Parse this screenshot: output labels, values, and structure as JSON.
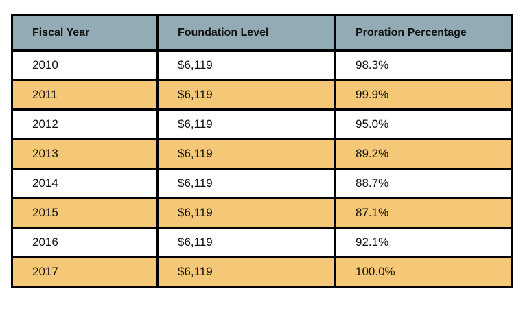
{
  "colors": {
    "header_bg": "#92abb5",
    "stripe_bg": "#f5c877",
    "row_bg": "#ffffff",
    "border": "#000000",
    "text": "#111111"
  },
  "table": {
    "columns": [
      {
        "label": "Fiscal Year"
      },
      {
        "label": "Foundation Level"
      },
      {
        "label": "Proration Percentage"
      }
    ],
    "rows": [
      {
        "fiscal_year": "2010",
        "foundation_level": "$6,119",
        "proration_percentage": "98.3%"
      },
      {
        "fiscal_year": "2011",
        "foundation_level": "$6,119",
        "proration_percentage": "99.9%"
      },
      {
        "fiscal_year": "2012",
        "foundation_level": "$6,119",
        "proration_percentage": "95.0%"
      },
      {
        "fiscal_year": "2013",
        "foundation_level": "$6,119",
        "proration_percentage": "89.2%"
      },
      {
        "fiscal_year": "2014",
        "foundation_level": "$6,119",
        "proration_percentage": "88.7%"
      },
      {
        "fiscal_year": "2015",
        "foundation_level": "$6,119",
        "proration_percentage": "87.1%"
      },
      {
        "fiscal_year": "2016",
        "foundation_level": "$6,119",
        "proration_percentage": "92.1%"
      },
      {
        "fiscal_year": "2017",
        "foundation_level": "$6,119",
        "proration_percentage": "100.0%"
      }
    ]
  },
  "chart_data": {
    "type": "table",
    "title": "",
    "columns": [
      "Fiscal Year",
      "Foundation Level",
      "Proration Percentage"
    ],
    "categories": [
      "2010",
      "2011",
      "2012",
      "2013",
      "2014",
      "2015",
      "2016",
      "2017"
    ],
    "series": [
      {
        "name": "Foundation Level ($)",
        "values": [
          6119,
          6119,
          6119,
          6119,
          6119,
          6119,
          6119,
          6119
        ]
      },
      {
        "name": "Proration Percentage (%)",
        "values": [
          98.3,
          99.9,
          95.0,
          89.2,
          88.7,
          87.1,
          92.1,
          100.0
        ]
      }
    ],
    "layout": {
      "stripe_alternating_rows": true,
      "header_background": "#92abb5",
      "stripe_background": "#f5c877"
    }
  }
}
